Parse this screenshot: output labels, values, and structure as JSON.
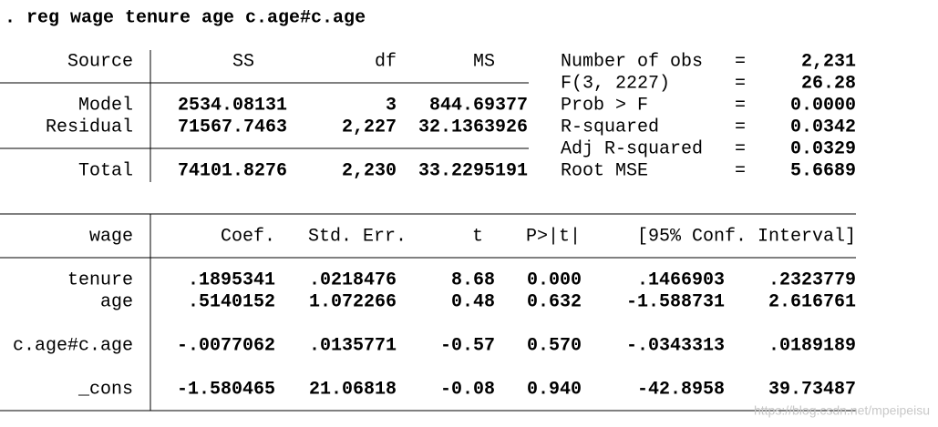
{
  "command": ". reg wage tenure age c.age#c.age",
  "anova": {
    "header": [
      "Source",
      "SS",
      "df",
      "MS"
    ],
    "rows": [
      [
        "Model",
        "2534.08131",
        "3",
        "844.69377"
      ],
      [
        "Residual",
        "71567.7463",
        "2,227",
        "32.1363926"
      ],
      [
        "Total",
        "74101.8276",
        "2,230",
        "33.2295191"
      ]
    ]
  },
  "stats": {
    "separator": "=",
    "rows": [
      {
        "label": "Number of obs",
        "value": "2,231"
      },
      {
        "label": "F(3, 2227)",
        "value": "26.28"
      },
      {
        "label": "Prob > F",
        "value": "0.0000"
      },
      {
        "label": "R-squared",
        "value": "0.0342"
      },
      {
        "label": "Adj R-squared",
        "value": "0.0329"
      },
      {
        "label": "Root MSE",
        "value": "5.6689"
      }
    ]
  },
  "coef_table": {
    "header": [
      "wage",
      "Coef.",
      "Std. Err.",
      "t",
      "P>|t|",
      "[95% Conf. Interval]"
    ],
    "rows": [
      [
        "tenure",
        ".1895341",
        ".0218476",
        "8.68",
        "0.000",
        ".1466903",
        ".2323779"
      ],
      [
        "age",
        ".5140152",
        "1.072266",
        "0.48",
        "0.632",
        "-1.588731",
        "2.616761"
      ],
      [
        "c.age#c.age",
        "-.0077062",
        ".0135771",
        "-0.57",
        "0.570",
        "-.0343313",
        ".0189189"
      ],
      [
        "_cons",
        "-1.580465",
        "21.06818",
        "-0.08",
        "0.940",
        "-42.8958",
        "39.73487"
      ]
    ]
  },
  "watermark": "https://blog.csdn.net/mpeipeisu"
}
